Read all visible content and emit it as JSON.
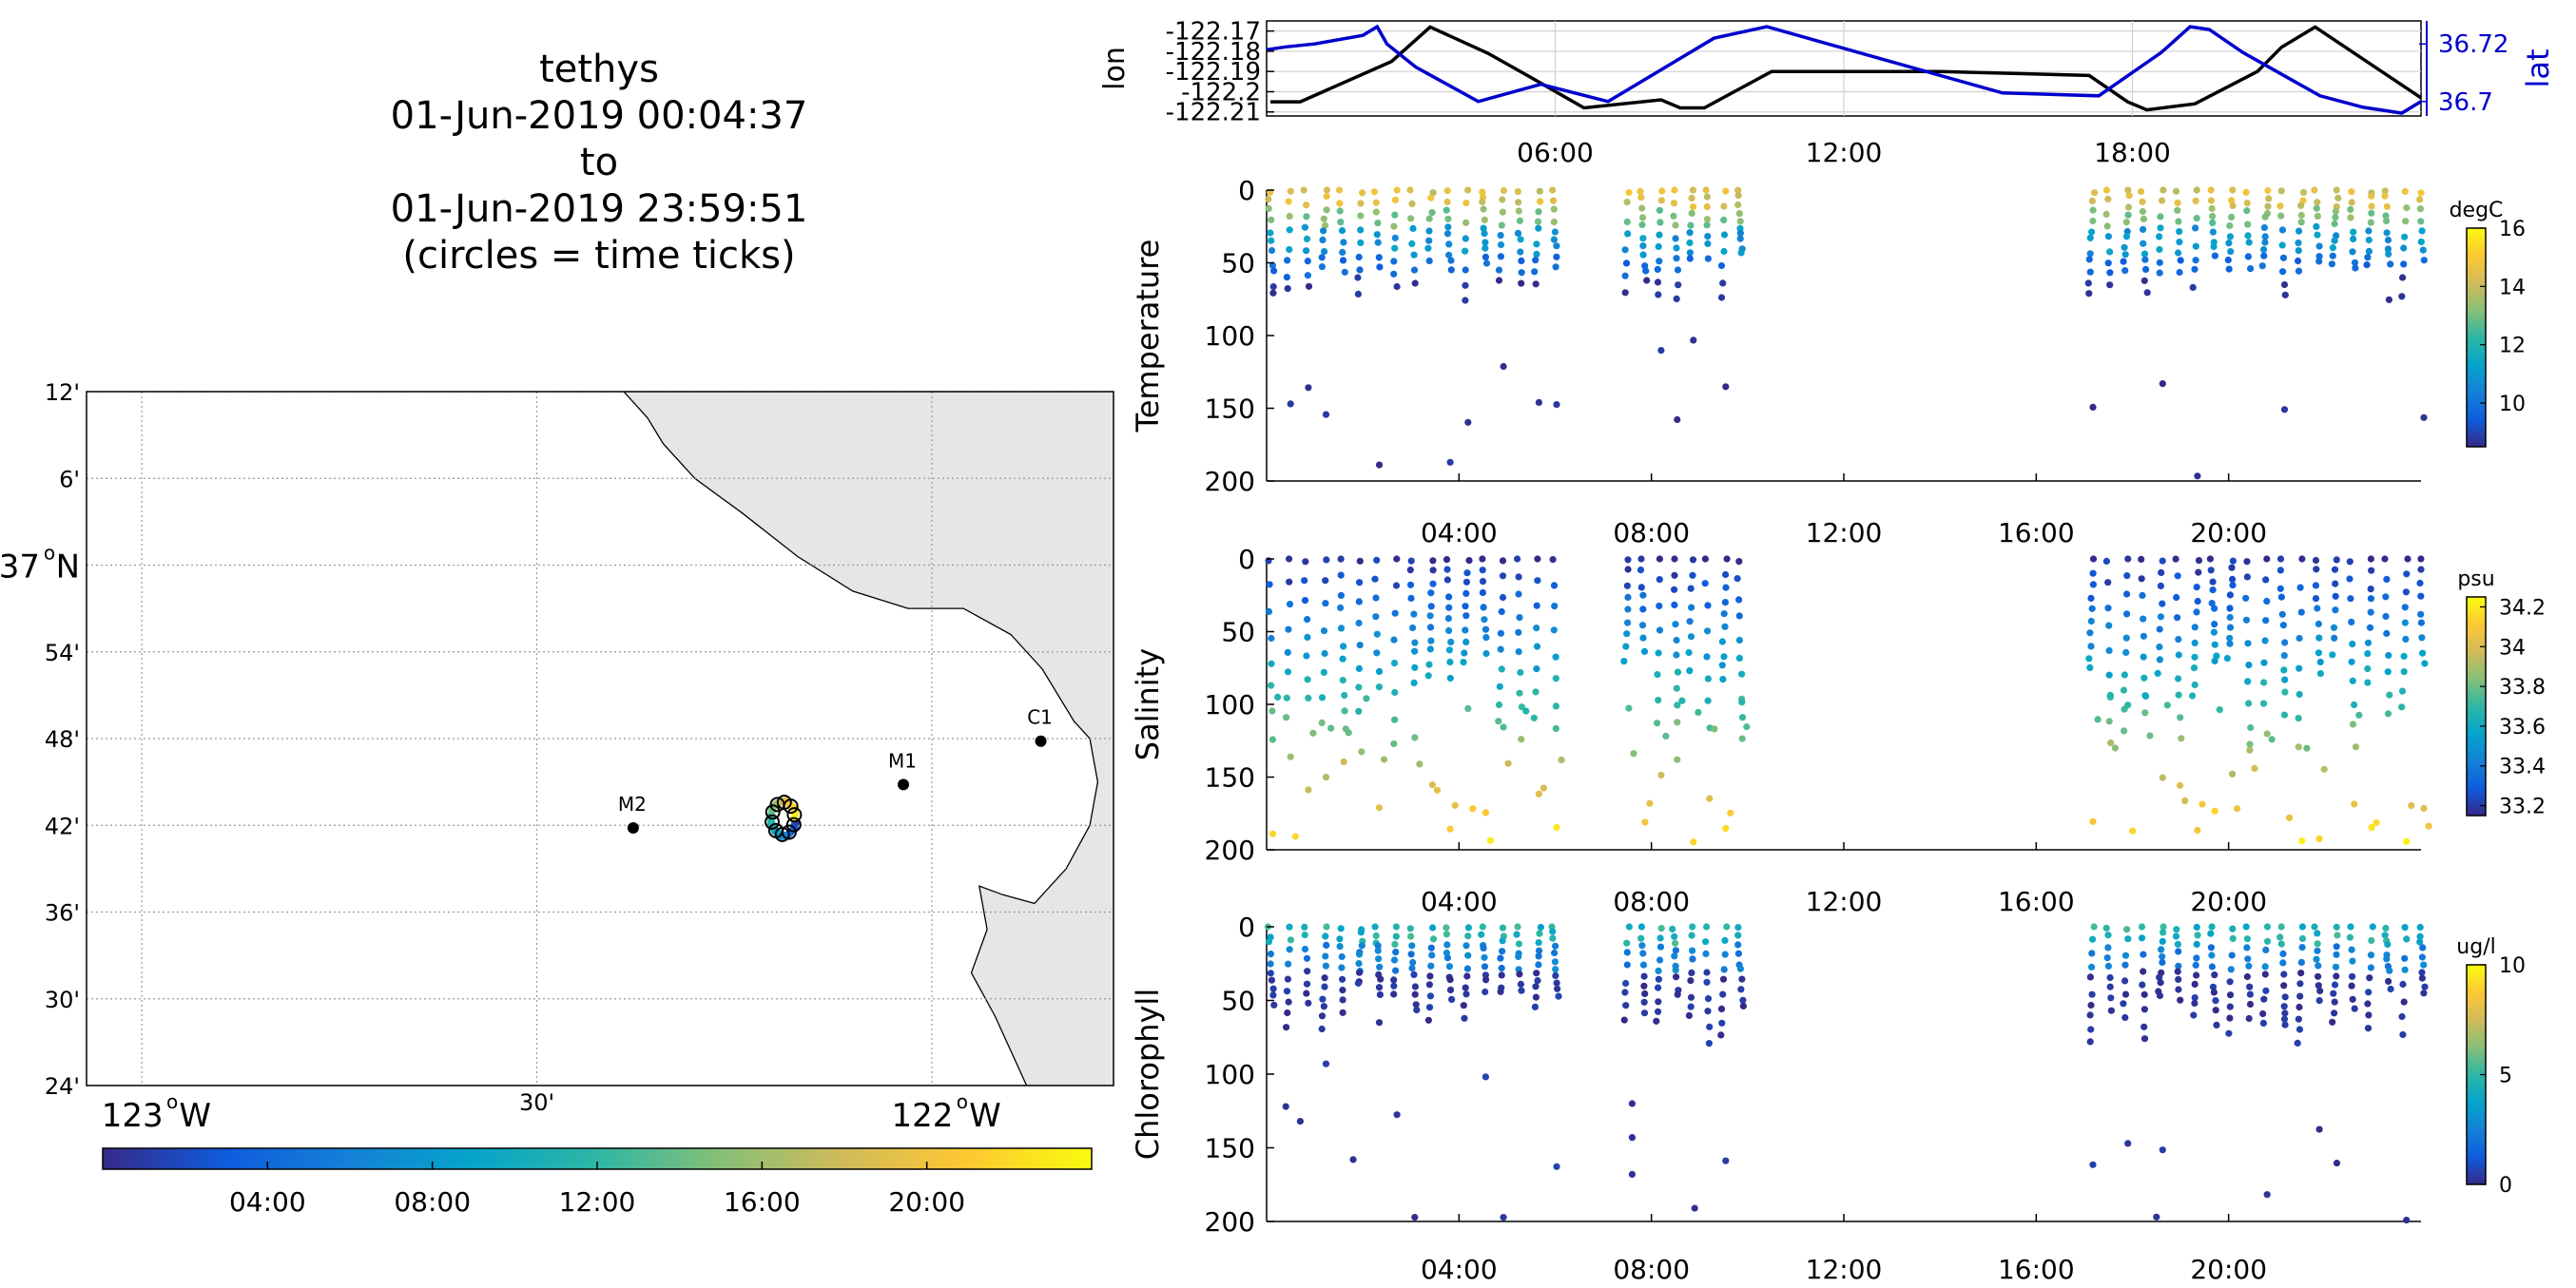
{
  "header": {
    "lines": [
      "tethys",
      "01-Jun-2019 00:04:37",
      "to",
      "01-Jun-2019 23:59:51",
      "(circles = time ticks)"
    ]
  },
  "colors": {
    "lon_line": "#000000",
    "lat_line": "#0000cc",
    "land": "#e6e6e6",
    "grid": "#bdbdbd",
    "parula": [
      "#352a87",
      "#0f5cdd",
      "#1481d6",
      "#06a4ca",
      "#2eb7a4",
      "#87bf77",
      "#d1bb59",
      "#fec832",
      "#f9fb0e"
    ]
  },
  "chart_data": [
    {
      "type": "line",
      "name": "position",
      "xlim": [
        0,
        24
      ],
      "x_ticks": [
        6,
        12,
        18
      ],
      "x_tick_labels": [
        "06:00",
        "12:00",
        "18:00"
      ],
      "ylabel_left": "lon",
      "ylabel_right": "lat",
      "y_left_ticks": [
        -122.17,
        -122.18,
        -122.19,
        -122.2,
        -122.21
      ],
      "y_left_tick_labels": [
        "-122.17",
        "-122.18",
        "-122.19",
        "-122.2",
        "-122.21"
      ],
      "y_left_lim": [
        -122.212,
        -122.165
      ],
      "y_right_ticks": [
        36.72,
        36.7
      ],
      "y_right_tick_labels": [
        "36.72",
        "36.7"
      ],
      "y_right_lim": [
        36.695,
        36.728
      ],
      "lon": {
        "x": [
          0.08,
          0.7,
          2.6,
          3.4,
          4.6,
          5.5,
          6.6,
          8.2,
          8.6,
          9.1,
          10.5,
          14.0,
          17.1,
          17.9,
          18.3,
          19.3,
          20.6,
          21.1,
          21.8,
          24.0
        ],
        "y": [
          -122.205,
          -122.205,
          -122.185,
          -122.168,
          -122.181,
          -122.193,
          -122.208,
          -122.204,
          -122.208,
          -122.208,
          -122.19,
          -122.19,
          -122.192,
          -122.205,
          -122.209,
          -122.206,
          -122.19,
          -122.178,
          -122.168,
          -122.203
        ]
      },
      "lat": {
        "x": [
          0.0,
          0.4,
          1.0,
          2.0,
          2.3,
          2.5,
          3.1,
          4.4,
          5.7,
          7.1,
          7.8,
          9.3,
          10.4,
          15.3,
          17.3,
          18.6,
          19.2,
          19.6,
          20.3,
          21.9,
          22.8,
          23.6,
          24.0
        ],
        "y": [
          36.718,
          36.719,
          36.72,
          36.723,
          36.726,
          36.72,
          36.712,
          36.7,
          36.706,
          36.7,
          36.707,
          36.722,
          36.726,
          36.703,
          36.702,
          36.717,
          36.726,
          36.725,
          36.717,
          36.702,
          36.698,
          36.696,
          36.7
        ]
      }
    },
    {
      "type": "scatter",
      "name": "temperature",
      "ylabel": "Temperature",
      "xlim": [
        0,
        24
      ],
      "ylim": [
        0,
        200
      ],
      "x_ticks": [
        4,
        8,
        12,
        16,
        20
      ],
      "x_tick_labels": [
        "04:00",
        "08:00",
        "12:00",
        "16:00",
        "20:00"
      ],
      "y_ticks": [
        0,
        50,
        100,
        150,
        200
      ],
      "y_tick_labels": [
        "0",
        "50",
        "100",
        "150",
        "200"
      ],
      "colorbar": {
        "unit": "degC",
        "lim": [
          8.5,
          16
        ],
        "ticks": [
          10,
          12,
          14,
          16
        ],
        "tick_labels": [
          "10",
          "12",
          "14",
          "16"
        ]
      },
      "sample_hours": [
        [
          0.05,
          5.95
        ],
        [
          7.45,
          9.8
        ],
        [
          17.1,
          23.98
        ]
      ],
      "max_depth": 200,
      "deep_depths": [
        65,
        85,
        95,
        110,
        120,
        135,
        140,
        160,
        170,
        180,
        185,
        190,
        195,
        200
      ]
    },
    {
      "type": "scatter",
      "name": "salinity",
      "ylabel": "Salinity",
      "xlim": [
        0,
        24
      ],
      "ylim": [
        0,
        200
      ],
      "x_ticks": [
        4,
        8,
        12,
        16,
        20
      ],
      "x_tick_labels": [
        "04:00",
        "08:00",
        "12:00",
        "16:00",
        "20:00"
      ],
      "y_ticks": [
        0,
        50,
        100,
        150,
        200
      ],
      "y_tick_labels": [
        "0",
        "50",
        "100",
        "150",
        "200"
      ],
      "colorbar": {
        "unit": "psu",
        "lim": [
          33.15,
          34.25
        ],
        "ticks": [
          33.2,
          33.4,
          33.6,
          33.8,
          34,
          34.2
        ],
        "tick_labels": [
          "33.2",
          "33.4",
          "33.6",
          "33.8",
          "34",
          "34.2"
        ]
      },
      "sample_hours": [
        [
          0.05,
          5.95
        ],
        [
          7.45,
          9.8
        ],
        [
          17.1,
          23.98
        ]
      ],
      "max_depth": 200
    },
    {
      "type": "scatter",
      "name": "chlorophyll",
      "ylabel": "Chlorophyll",
      "xlim": [
        0,
        24
      ],
      "ylim": [
        0,
        200
      ],
      "x_ticks": [
        4,
        8,
        12,
        16,
        20
      ],
      "x_tick_labels": [
        "04:00",
        "08:00",
        "12:00",
        "16:00",
        "20:00"
      ],
      "y_ticks": [
        0,
        50,
        100,
        150,
        200
      ],
      "y_tick_labels": [
        "0",
        "50",
        "100",
        "150",
        "200"
      ],
      "colorbar": {
        "unit": "ug/l",
        "lim": [
          0,
          10
        ],
        "ticks": [
          0,
          5,
          10
        ],
        "tick_labels": [
          "0",
          "5",
          "10"
        ]
      },
      "sample_hours": [
        [
          0.05,
          5.95
        ],
        [
          7.45,
          9.8
        ],
        [
          17.1,
          23.98
        ]
      ],
      "max_depth": 200,
      "outliers": [
        {
          "x": 0.4,
          "y": 122
        },
        {
          "x": 0.7,
          "y": 132
        },
        {
          "x": 1.8,
          "y": 158
        },
        {
          "x": 7.6,
          "y": 120
        },
        {
          "x": 7.6,
          "y": 143
        },
        {
          "x": 7.6,
          "y": 168
        },
        {
          "x": 8.9,
          "y": 191
        },
        {
          "x": 18.5,
          "y": 197
        }
      ]
    }
  ],
  "map": {
    "lon_lim": [
      -123.07,
      -121.77
    ],
    "lat_lim": [
      36.4,
      37.2
    ],
    "lon_ticks": [
      {
        "value": -123.0,
        "label": "123",
        "suffix": "W"
      },
      {
        "value": -122.5,
        "label": "30'",
        "suffix": ""
      },
      {
        "value": -122.0,
        "label": "122",
        "suffix": "W"
      }
    ],
    "lat_ticks": [
      {
        "value": 37.2,
        "label": "12'"
      },
      {
        "value": 37.1,
        "label": "6'"
      },
      {
        "value": 37.0,
        "label": "37",
        "suffix": "N"
      },
      {
        "value": 36.9,
        "label": "54'"
      },
      {
        "value": 36.8,
        "label": "48'"
      },
      {
        "value": 36.7,
        "label": "42'"
      },
      {
        "value": 36.6,
        "label": "36'"
      },
      {
        "value": 36.5,
        "label": "30'"
      },
      {
        "value": 36.4,
        "label": "24'"
      }
    ],
    "moorings": [
      {
        "name": "M2",
        "lon": -122.378,
        "lat": 36.697
      },
      {
        "name": "M1",
        "lon": -122.036,
        "lat": 36.747
      },
      {
        "name": "C1",
        "lon": -121.862,
        "lat": 36.797
      }
    ],
    "track_center": {
      "lon": -122.188,
      "lat": 36.708
    },
    "coast": [
      [
        -122.39,
        37.2
      ],
      [
        -122.36,
        37.17
      ],
      [
        -122.34,
        37.14
      ],
      [
        -122.3,
        37.1
      ],
      [
        -122.24,
        37.06
      ],
      [
        -122.17,
        37.01
      ],
      [
        -122.1,
        36.97
      ],
      [
        -122.03,
        36.95
      ],
      [
        -121.96,
        36.95
      ],
      [
        -121.9,
        36.92
      ],
      [
        -121.86,
        36.88
      ],
      [
        -121.82,
        36.82
      ],
      [
        -121.8,
        36.8
      ],
      [
        -121.79,
        36.75
      ],
      [
        -121.8,
        36.7
      ],
      [
        -121.83,
        36.65
      ],
      [
        -121.87,
        36.61
      ],
      [
        -121.91,
        36.62
      ],
      [
        -121.94,
        36.63
      ],
      [
        -121.93,
        36.58
      ],
      [
        -121.95,
        36.53
      ],
      [
        -121.92,
        36.48
      ],
      [
        -121.9,
        36.44
      ],
      [
        -121.88,
        36.4
      ]
    ],
    "colorbar": {
      "lim": [
        0,
        24
      ],
      "ticks": [
        4,
        8,
        12,
        16,
        20
      ],
      "tick_labels": [
        "04:00",
        "08:00",
        "12:00",
        "16:00",
        "20:00"
      ]
    }
  }
}
